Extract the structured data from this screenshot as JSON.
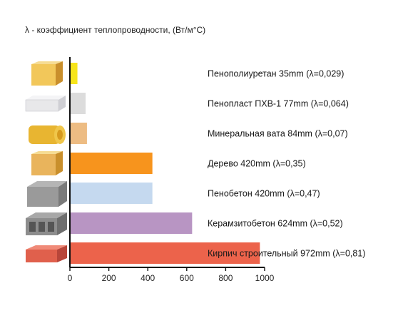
{
  "caption": "λ - коэффициент теплопроводности, (Вт/м°С)",
  "chart_data": {
    "type": "bar",
    "orientation": "horizontal",
    "xlim": [
      0,
      1000
    ],
    "x_ticks": [
      0,
      200,
      400,
      600,
      800,
      1000
    ],
    "grid": false,
    "materials": [
      {
        "label": "Пенополиуретан 35mm (λ=0,029)",
        "value": 35,
        "color": "#f7e51b",
        "icon": "polyurethane-foam-block-icon",
        "swatch": "#f2c75a"
      },
      {
        "label": "Пенопласт ПХВ-1 77mm (λ=0,064)",
        "value": 77,
        "color": "#dcdcdc",
        "icon": "polystyrene-foam-block-icon",
        "swatch": "#e8e8ea"
      },
      {
        "label": "Минеральная вата 84mm  (λ=0,07)",
        "value": 84,
        "color": "#edbc83",
        "icon": "mineral-wool-roll-icon",
        "swatch": "#e8b531"
      },
      {
        "label": "Дерево 420mm  (λ=0,35)",
        "value": 420,
        "color": "#f7941d",
        "icon": "wood-block-icon",
        "swatch": "#e9b45c"
      },
      {
        "label": "Пенобетон 420mm  (λ=0,47)",
        "value": 420,
        "color": "#c5d9ef",
        "icon": "foam-concrete-block-icon",
        "swatch": "#9a9a9a"
      },
      {
        "label": "Керамзитобетон 624mm  (λ=0,52)",
        "value": 624,
        "color": "#b895c3",
        "icon": "expanded-clay-concrete-block-icon",
        "swatch": "#8d8d8d"
      },
      {
        "label": "Кирпич строительный 972mm  (λ=0,81)",
        "value": 972,
        "color": "#ec634b",
        "icon": "brick-icon",
        "swatch": "#e0604c"
      }
    ]
  }
}
